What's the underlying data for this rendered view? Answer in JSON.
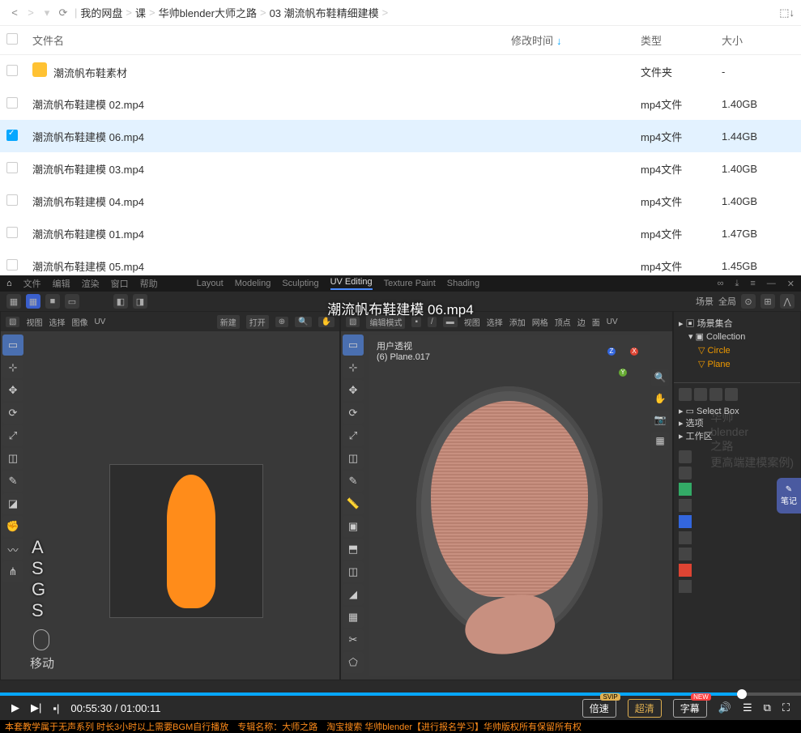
{
  "nav": {
    "back": "<",
    "fwd": ">",
    "refresh": "⟳",
    "crumbs": [
      "我的网盘",
      "课",
      "华帅blender大师之路",
      "03 潮流帆布鞋精细建模"
    ],
    "sep": ">",
    "sort": "⬚↓"
  },
  "columns": {
    "name": "文件名",
    "mtime": "修改时间",
    "type": "类型",
    "size": "大小",
    "arrow": "↓"
  },
  "files": [
    {
      "icon": "folder",
      "name": "潮流帆布鞋素材",
      "type": "文件夹",
      "size": "-",
      "sel": false
    },
    {
      "icon": "video",
      "name": "潮流帆布鞋建模 02.mp4",
      "type": "mp4文件",
      "size": "1.40GB",
      "sel": false
    },
    {
      "icon": "video",
      "name": "潮流帆布鞋建模 06.mp4",
      "type": "mp4文件",
      "size": "1.44GB",
      "sel": true
    },
    {
      "icon": "video",
      "name": "潮流帆布鞋建模 03.mp4",
      "type": "mp4文件",
      "size": "1.40GB",
      "sel": false
    },
    {
      "icon": "video",
      "name": "潮流帆布鞋建模 04.mp4",
      "type": "mp4文件",
      "size": "1.40GB",
      "sel": false
    },
    {
      "icon": "video",
      "name": "潮流帆布鞋建模 01.mp4",
      "type": "mp4文件",
      "size": "1.47GB",
      "sel": false
    },
    {
      "icon": "video",
      "name": "潮流帆布鞋建模 05.mp4",
      "type": "mp4文件",
      "size": "1.45GB",
      "sel": false
    }
  ],
  "video": {
    "title": "潮流帆布鞋建模 06.mp4",
    "blender_menu": [
      "文件",
      "编辑",
      "渲染",
      "窗口",
      "帮助"
    ],
    "blender_ws": [
      "Layout",
      "Modeling",
      "Sculpting",
      "UV Editing",
      "Texture Paint",
      "Shading"
    ],
    "blender_ws_active": "UV Editing",
    "header_right": [
      "场景",
      "全局"
    ],
    "uv_header": [
      "视图",
      "选择",
      "图像",
      "UV",
      "新建",
      "打开"
    ],
    "view_header": [
      "编辑模式",
      "视图",
      "选择",
      "添加",
      "网格",
      "顶点",
      "边",
      "面",
      "UV"
    ],
    "view_info1": "用户透视",
    "view_info2": "(6) Plane.017",
    "asgs": "A\nS\nG\nS",
    "move": "移动",
    "outliner_title": "场景集合",
    "outliner": [
      "Collection",
      "Circle",
      "Plane"
    ],
    "props": [
      "Select Box",
      "选项",
      "工作区"
    ],
    "watermark": "华帅\nblender\n之路\n更高端建模案例)",
    "notes": "笔记",
    "progress_pct": 92,
    "time_cur": "00:55:30",
    "time_tot": "01:00:11",
    "speed": "倍速",
    "quality": "超清",
    "subtitle": "字幕",
    "svip": "SVIP",
    "new": "NEW",
    "bottom_text": "本套教学属于无声系列 时长3小时以上需要BGM自行播放　专辑名称：大师之路　淘宝搜索 华帅blender【进行报名学习】华帅版权所有保留所有权"
  }
}
